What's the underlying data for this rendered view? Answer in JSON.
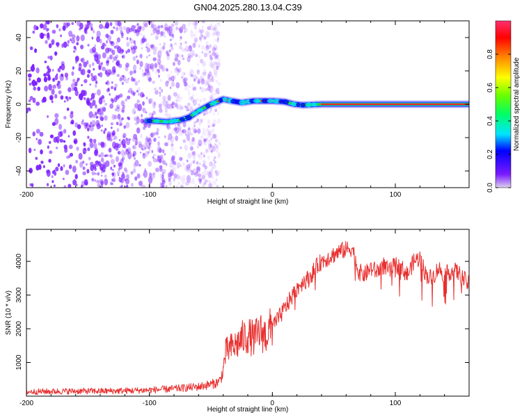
{
  "title": "GN04.2025.280.13.04.C39",
  "colors": {
    "snr_line": "#e8302f",
    "scatter_dots": "#7a1cff",
    "track_green": "#22d23a",
    "track_red": "#e8232a",
    "colorbar": [
      "#dcd2ee",
      "#7a1aff",
      "#0000ff",
      "#00e5ff",
      "#00ff66",
      "#66ff00",
      "#ffff00",
      "#ff8800",
      "#ff0000",
      "#ff3070"
    ]
  },
  "chart_data": [
    {
      "type": "heatmap",
      "name": "spectrogram",
      "xlabel": "Height of straight line (km)",
      "ylabel": "Frequency (Hz)",
      "xlim": [
        -200,
        160
      ],
      "ylim": [
        -50,
        50
      ],
      "x_ticks": [
        "-200",
        "-100",
        "0",
        "100"
      ],
      "x_tick_values": [
        -200,
        -100,
        0,
        100
      ],
      "y_ticks": [
        "-40",
        "-20",
        "0",
        "20",
        "40"
      ],
      "y_tick_values": [
        -40,
        -20,
        0,
        20,
        40
      ],
      "noise_region_x": [
        -200,
        -55
      ],
      "ridge": {
        "x": [
          -102,
          -95,
          -85,
          -75,
          -68,
          -60,
          -50,
          -40,
          -33,
          -25,
          -15,
          0,
          10,
          18,
          25,
          40,
          80,
          120,
          160
        ],
        "y": [
          -10,
          -10,
          -10.5,
          -9.5,
          -8,
          -4,
          0,
          3,
          2,
          1,
          2,
          2,
          1.5,
          0,
          -0.5,
          0,
          0,
          0,
          0
        ]
      },
      "colorbar": {
        "label": "Normalized spectral amplitude",
        "range": [
          0.0,
          1.0
        ],
        "ticks": [
          "0.0",
          "0.2",
          "0.4",
          "0.6",
          "0.8"
        ],
        "tick_values": [
          0.0,
          0.2,
          0.4,
          0.6,
          0.8
        ]
      }
    },
    {
      "type": "line",
      "name": "snr",
      "xlabel": "Height of straight line (km)",
      "ylabel": "SNR (10 * v/v)",
      "xlim": [
        -200,
        160
      ],
      "ylim": [
        0,
        4950
      ],
      "x_ticks": [
        "-200",
        "-100",
        "0",
        "100"
      ],
      "x_tick_values": [
        -200,
        -100,
        0,
        100
      ],
      "y_ticks": [
        "1000",
        "2000",
        "3000",
        "4000"
      ],
      "y_tick_values": [
        1000,
        2000,
        3000,
        4000
      ],
      "series": [
        {
          "name": "SNR",
          "x": [
            -200,
            -180,
            -160,
            -140,
            -120,
            -100,
            -80,
            -70,
            -60,
            -50,
            -45,
            -42,
            -40,
            -38,
            -35,
            -30,
            -25,
            -20,
            -15,
            -10,
            -5,
            0,
            5,
            10,
            15,
            20,
            25,
            30,
            35,
            40,
            45,
            50,
            55,
            60,
            65,
            70,
            75,
            80,
            85,
            90,
            95,
            100,
            105,
            110,
            115,
            120,
            125,
            130,
            135,
            140,
            145,
            150,
            155,
            160
          ],
          "y": [
            130,
            140,
            150,
            150,
            160,
            180,
            220,
            250,
            280,
            350,
            400,
            500,
            800,
            1300,
            1400,
            1500,
            1700,
            1800,
            1700,
            1900,
            1800,
            2100,
            2300,
            2600,
            2900,
            3200,
            3400,
            3500,
            3800,
            4000,
            4100,
            4200,
            4300,
            4350,
            4400,
            3700,
            3600,
            3800,
            3700,
            3900,
            3700,
            3900,
            3800,
            3600,
            4000,
            4100,
            3600,
            3500,
            3800,
            3600,
            3700,
            3700,
            3500,
            3300
          ]
        }
      ]
    }
  ]
}
